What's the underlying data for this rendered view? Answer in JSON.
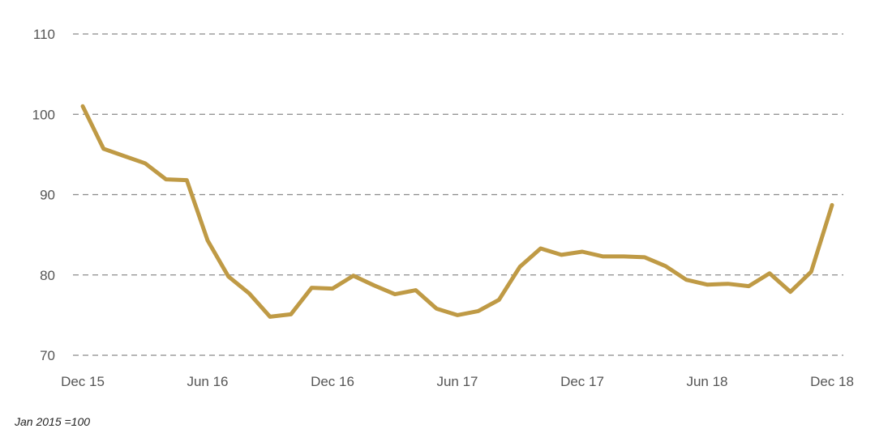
{
  "chart_data": {
    "type": "line",
    "x_ticks": [
      "Dec 15",
      "Jun 16",
      "Dec 16",
      "Jun 17",
      "Dec 17",
      "Jun 18",
      "Dec 18"
    ],
    "y_ticks": [
      70,
      80,
      90,
      100,
      110
    ],
    "ylim": [
      70,
      110
    ],
    "grid": true,
    "grid_style": "dashed",
    "series": [
      {
        "color": "#bf9a45",
        "x": [
          "Dec 15",
          "Jan 16",
          "Feb 16",
          "Mar 16",
          "Apr 16",
          "May 16",
          "Jun 16",
          "Jul 16",
          "Aug 16",
          "Sep 16",
          "Oct 16",
          "Nov 16",
          "Dec 16",
          "Jan 17",
          "Feb 17",
          "Mar 17",
          "Apr 17",
          "May 17",
          "Jun 17",
          "Jul 17",
          "Aug 17",
          "Sep 17",
          "Oct 17",
          "Nov 17",
          "Dec 17",
          "Jan 18",
          "Feb 18",
          "Mar 18",
          "Apr 18",
          "May 18",
          "Jun 18",
          "Jul 18",
          "Aug 18",
          "Sep 18",
          "Oct 18",
          "Nov 18",
          "Dec 18"
        ],
        "values": [
          101.0,
          95.7,
          94.8,
          93.9,
          91.9,
          91.8,
          84.3,
          79.8,
          77.7,
          74.8,
          75.1,
          78.4,
          78.3,
          79.9,
          78.7,
          77.6,
          78.1,
          75.8,
          75.0,
          75.5,
          76.9,
          81.0,
          83.3,
          82.5,
          82.9,
          82.3,
          82.3,
          82.2,
          81.1,
          79.4,
          78.8,
          78.9,
          78.6,
          80.2,
          77.9,
          80.4,
          88.7
        ]
      }
    ]
  },
  "footnote": "Jan 2015 =100"
}
